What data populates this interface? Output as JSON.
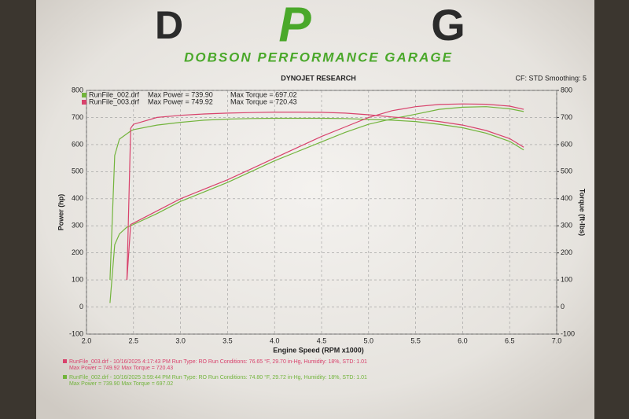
{
  "logo": {
    "left": "D",
    "center": "P",
    "right": "G",
    "tagline": "DOBSON PERFORMANCE GARAGE"
  },
  "chart_data": {
    "type": "line",
    "title": "DYNOJET RESEARCH",
    "subtitle": "CF: STD  Smoothing: 5",
    "xlabel": "Engine Speed (RPM x1000)",
    "ylabel": "Power (hp)",
    "y2label": "Torque (ft-lbs)",
    "xlim": [
      2,
      7
    ],
    "xticks": [
      {
        "value": 2,
        "label": "2.0"
      },
      2.5,
      {
        "value": 3,
        "label": "3.0"
      },
      3.5,
      {
        "value": 4,
        "label": "4.0"
      },
      4.5,
      {
        "value": 5,
        "label": "5.0"
      },
      5.5,
      {
        "value": 6,
        "label": "6.0"
      },
      6.5,
      {
        "value": 7,
        "label": "7.0"
      }
    ],
    "ylim": [
      -100,
      800
    ],
    "yticks": [
      -100,
      0,
      100,
      200,
      300,
      400,
      500,
      600,
      700,
      800
    ],
    "y2lim": [
      -100,
      800
    ],
    "y2ticks": [
      -100,
      0,
      100,
      200,
      300,
      400,
      500,
      600,
      700,
      800
    ],
    "grid": true,
    "x": [
      2.25,
      2.3,
      2.35,
      2.43,
      2.47,
      2.5,
      2.75,
      3.0,
      3.25,
      3.5,
      3.75,
      4.0,
      4.25,
      4.5,
      4.75,
      5.0,
      5.25,
      5.5,
      5.75,
      6.0,
      6.25,
      6.5,
      6.65
    ],
    "series": [
      {
        "name": "RunFile_002.drf",
        "color": "#72b43c",
        "max_power": "Max Power = 739.90",
        "max_torque": "Max Torque = 697.02",
        "footer": "RunFile_002.drf - 10/16/2025 3:59:44 PM  Run Type: RO  Run Conditions: 74.80 °F, 29.72 in-Hg,  Humidity:  18%,  STD: 1.01",
        "footer2": "Max Power = 739.90   Max Torque = 697.02",
        "power": [
          15,
          230,
          270,
          295,
          300,
          305,
          345,
          390,
          425,
          460,
          500,
          540,
          575,
          610,
          645,
          675,
          695,
          712,
          730,
          738,
          740,
          732,
          722
        ],
        "torque": [
          100,
          560,
          620,
          640,
          650,
          655,
          672,
          682,
          690,
          694,
          696,
          697,
          697,
          697,
          696,
          693,
          690,
          685,
          675,
          662,
          642,
          612,
          580
        ]
      },
      {
        "name": "RunFile_003.drf",
        "color": "#d8426c",
        "max_power": "Max Power = 749.92",
        "max_torque": "Max Torque = 720.43",
        "footer": "RunFile_003.drf - 10/16/2025 4:17:43 PM  Run Type: RO  Run Conditions: 76.65 °F, 29.70 in-Hg,  Humidity:  18%,  STD: 1.01",
        "footer2": "Max Power = 749.92   Max Torque = 720.43",
        "power": [
          null,
          null,
          null,
          100,
          305,
          310,
          355,
          400,
          435,
          470,
          510,
          550,
          590,
          630,
          665,
          700,
          725,
          740,
          748,
          750,
          749,
          742,
          730
        ],
        "torque": [
          null,
          null,
          null,
          100,
          660,
          675,
          700,
          708,
          713,
          716,
          718,
          720,
          720,
          719,
          716,
          710,
          702,
          695,
          685,
          672,
          652,
          622,
          590
        ]
      }
    ]
  }
}
